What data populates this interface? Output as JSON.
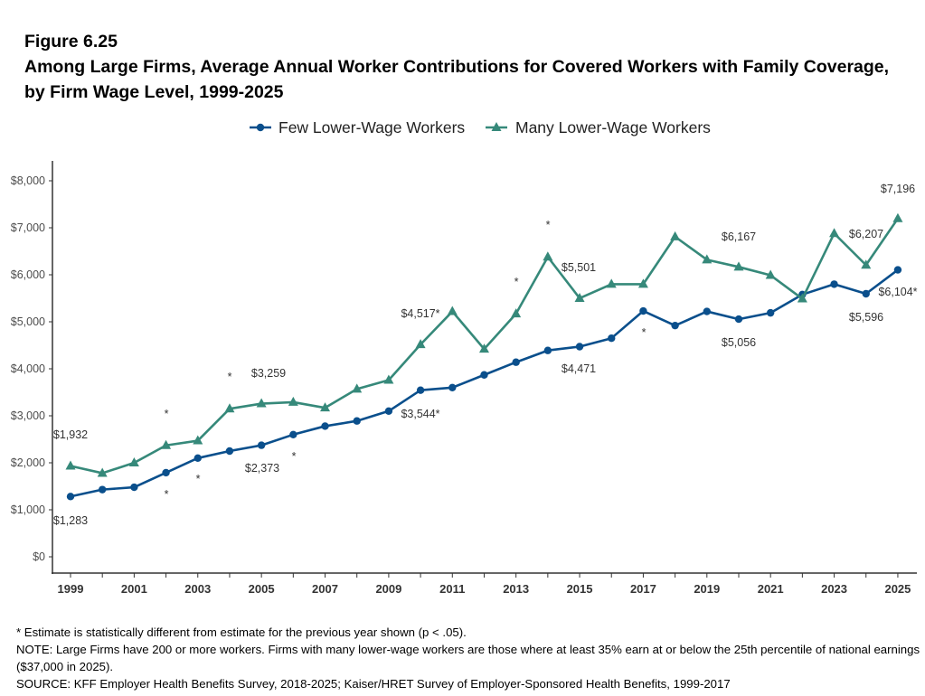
{
  "figure_label": "Figure 6.25",
  "title": "Among Large Firms, Average Annual Worker Contributions for Covered Workers with Family Coverage, by Firm Wage Level, 1999-2025",
  "footnotes": [
    "* Estimate is statistically different from estimate for the previous year shown (p < .05).",
    "NOTE: Large Firms have 200 or more workers. Firms with many lower-wage workers are those where at least 35% earn at or below the 25th percentile of national earnings ($37,000 in 2025).",
    "SOURCE: KFF Employer Health Benefits Survey, 2018-2025; Kaiser/HRET Survey of Employer-Sponsored Health Benefits, 1999-2017"
  ],
  "chart_data": {
    "type": "line",
    "title": "Among Large Firms, Average Annual Worker Contributions for Covered Workers with Family Coverage, by Firm Wage Level, 1999-2025",
    "xlabel": "",
    "ylabel": "",
    "x": [
      1999,
      2000,
      2001,
      2002,
      2003,
      2004,
      2005,
      2006,
      2007,
      2008,
      2009,
      2010,
      2011,
      2012,
      2013,
      2014,
      2015,
      2016,
      2017,
      2018,
      2019,
      2020,
      2021,
      2022,
      2023,
      2024,
      2025
    ],
    "xticks": [
      "1999",
      "2001",
      "2003",
      "2005",
      "2007",
      "2009",
      "2011",
      "2013",
      "2015",
      "2017",
      "2019",
      "2021",
      "2023",
      "2025"
    ],
    "ylim": [
      0,
      8000
    ],
    "yticks": [
      "$0",
      "$1,000",
      "$2,000",
      "$3,000",
      "$4,000",
      "$5,000",
      "$6,000",
      "$7,000",
      "$8,000"
    ],
    "ytick_values": [
      0,
      1000,
      2000,
      3000,
      4000,
      5000,
      6000,
      7000,
      8000
    ],
    "grid": false,
    "legend_position": "top",
    "series": [
      {
        "name": "Few Lower-Wage Workers",
        "color": "#0a4f8c",
        "marker": "circle",
        "values": [
          1283,
          1430,
          1480,
          1790,
          2100,
          2250,
          2373,
          2600,
          2780,
          2890,
          3100,
          3544,
          3600,
          3870,
          4140,
          4390,
          4471,
          4650,
          5230,
          4920,
          5220,
          5056,
          5190,
          5580,
          5800,
          5596,
          6104
        ]
      },
      {
        "name": "Many Lower-Wage Workers",
        "color": "#36897a",
        "marker": "triangle",
        "values": [
          1932,
          1780,
          2000,
          2370,
          2470,
          3150,
          3259,
          3290,
          3170,
          3570,
          3760,
          4517,
          5220,
          4420,
          5170,
          6380,
          5501,
          5800,
          5800,
          6810,
          6320,
          6167,
          5990,
          5490,
          6880,
          6207,
          7196
        ]
      }
    ],
    "data_labels": [
      "$1,932",
      "$1,283",
      "$3,259",
      "$2,373",
      "$3,544*",
      "$4,517*",
      "$5,501",
      "$4,471",
      "$6,167",
      "$5,056",
      "$6,207",
      "$5,596",
      "$7,196",
      "$6,104*"
    ],
    "significance_marker": "*"
  }
}
